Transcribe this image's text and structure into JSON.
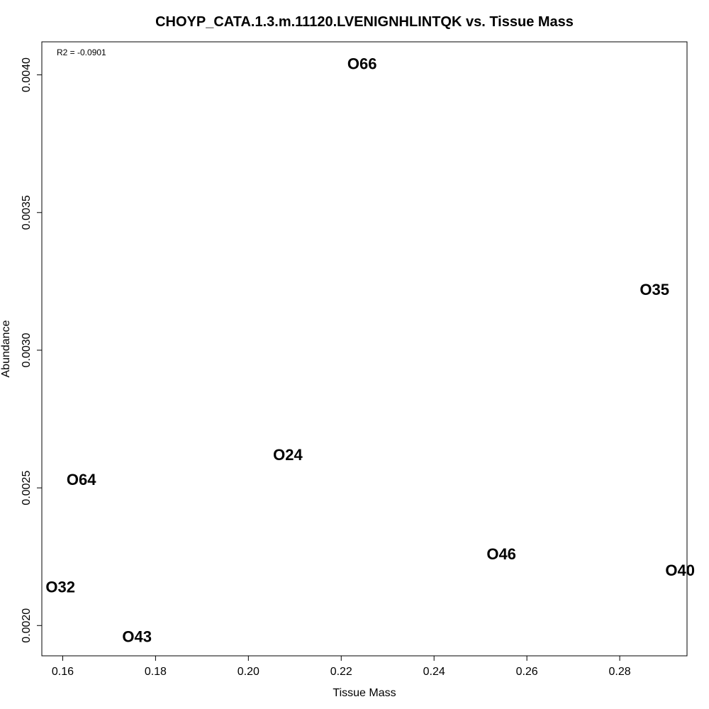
{
  "chart_data": {
    "type": "scatter",
    "title": "CHOYP_CATA.1.3.m.11120.LVENIGNHLINTQK vs. Tissue Mass",
    "xlabel": "Tissue Mass",
    "ylabel": "Abundance",
    "annotation": "R2 = -0.0901",
    "xlim": [
      0.1555,
      0.2945
    ],
    "ylim": [
      0.00189,
      0.00412
    ],
    "x_ticks": [
      0.16,
      0.18,
      0.2,
      0.22,
      0.24,
      0.26,
      0.28
    ],
    "x_tick_labels": [
      "0.16",
      "0.18",
      "0.20",
      "0.22",
      "0.24",
      "0.26",
      "0.28"
    ],
    "y_ticks": [
      0.002,
      0.0025,
      0.003,
      0.0035,
      0.004
    ],
    "y_tick_labels": [
      "0.0020",
      "0.0025",
      "0.0030",
      "0.0035",
      "0.0040"
    ],
    "grid": false,
    "points": [
      {
        "label": "O66",
        "x": 0.2245,
        "y": 0.00404
      },
      {
        "label": "O35",
        "x": 0.2875,
        "y": 0.00322
      },
      {
        "label": "O24",
        "x": 0.2085,
        "y": 0.00262
      },
      {
        "label": "O64",
        "x": 0.164,
        "y": 0.00253
      },
      {
        "label": "O46",
        "x": 0.2545,
        "y": 0.00226
      },
      {
        "label": "O40",
        "x": 0.293,
        "y": 0.0022
      },
      {
        "label": "O32",
        "x": 0.1595,
        "y": 0.00214
      },
      {
        "label": "O43",
        "x": 0.176,
        "y": 0.00196
      }
    ]
  }
}
